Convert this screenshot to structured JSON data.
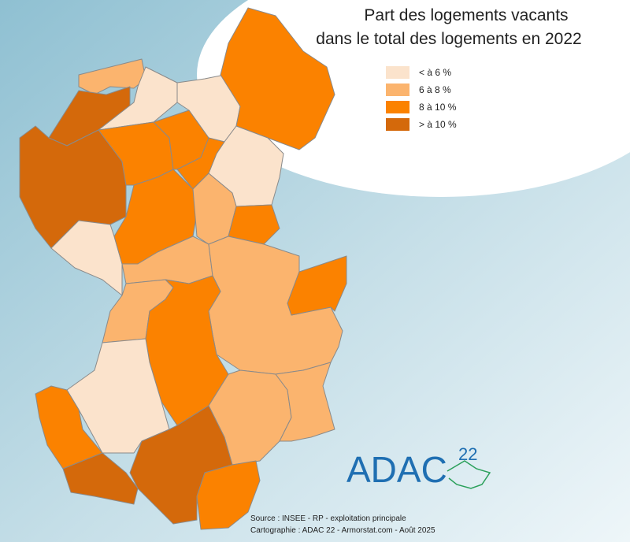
{
  "title": [
    "Part des logements vacants",
    "dans le total des logements en 2022"
  ],
  "legend": [
    {
      "label": "< à 6 %",
      "color": "#fbe3cc"
    },
    {
      "label": "6 à 8 %",
      "color": "#fbb46e"
    },
    {
      "label": "8 à 10 %",
      "color": "#fb8200"
    },
    {
      "label": "> à 10 %",
      "color": "#d4690b"
    }
  ],
  "logo": {
    "text": "ADAC",
    "superscript": "22"
  },
  "source": [
    "Source : INSEE - RP - exploitation principale",
    "Cartographie : ADAC 22 - Armorstat.com - Août 2025"
  ]
}
